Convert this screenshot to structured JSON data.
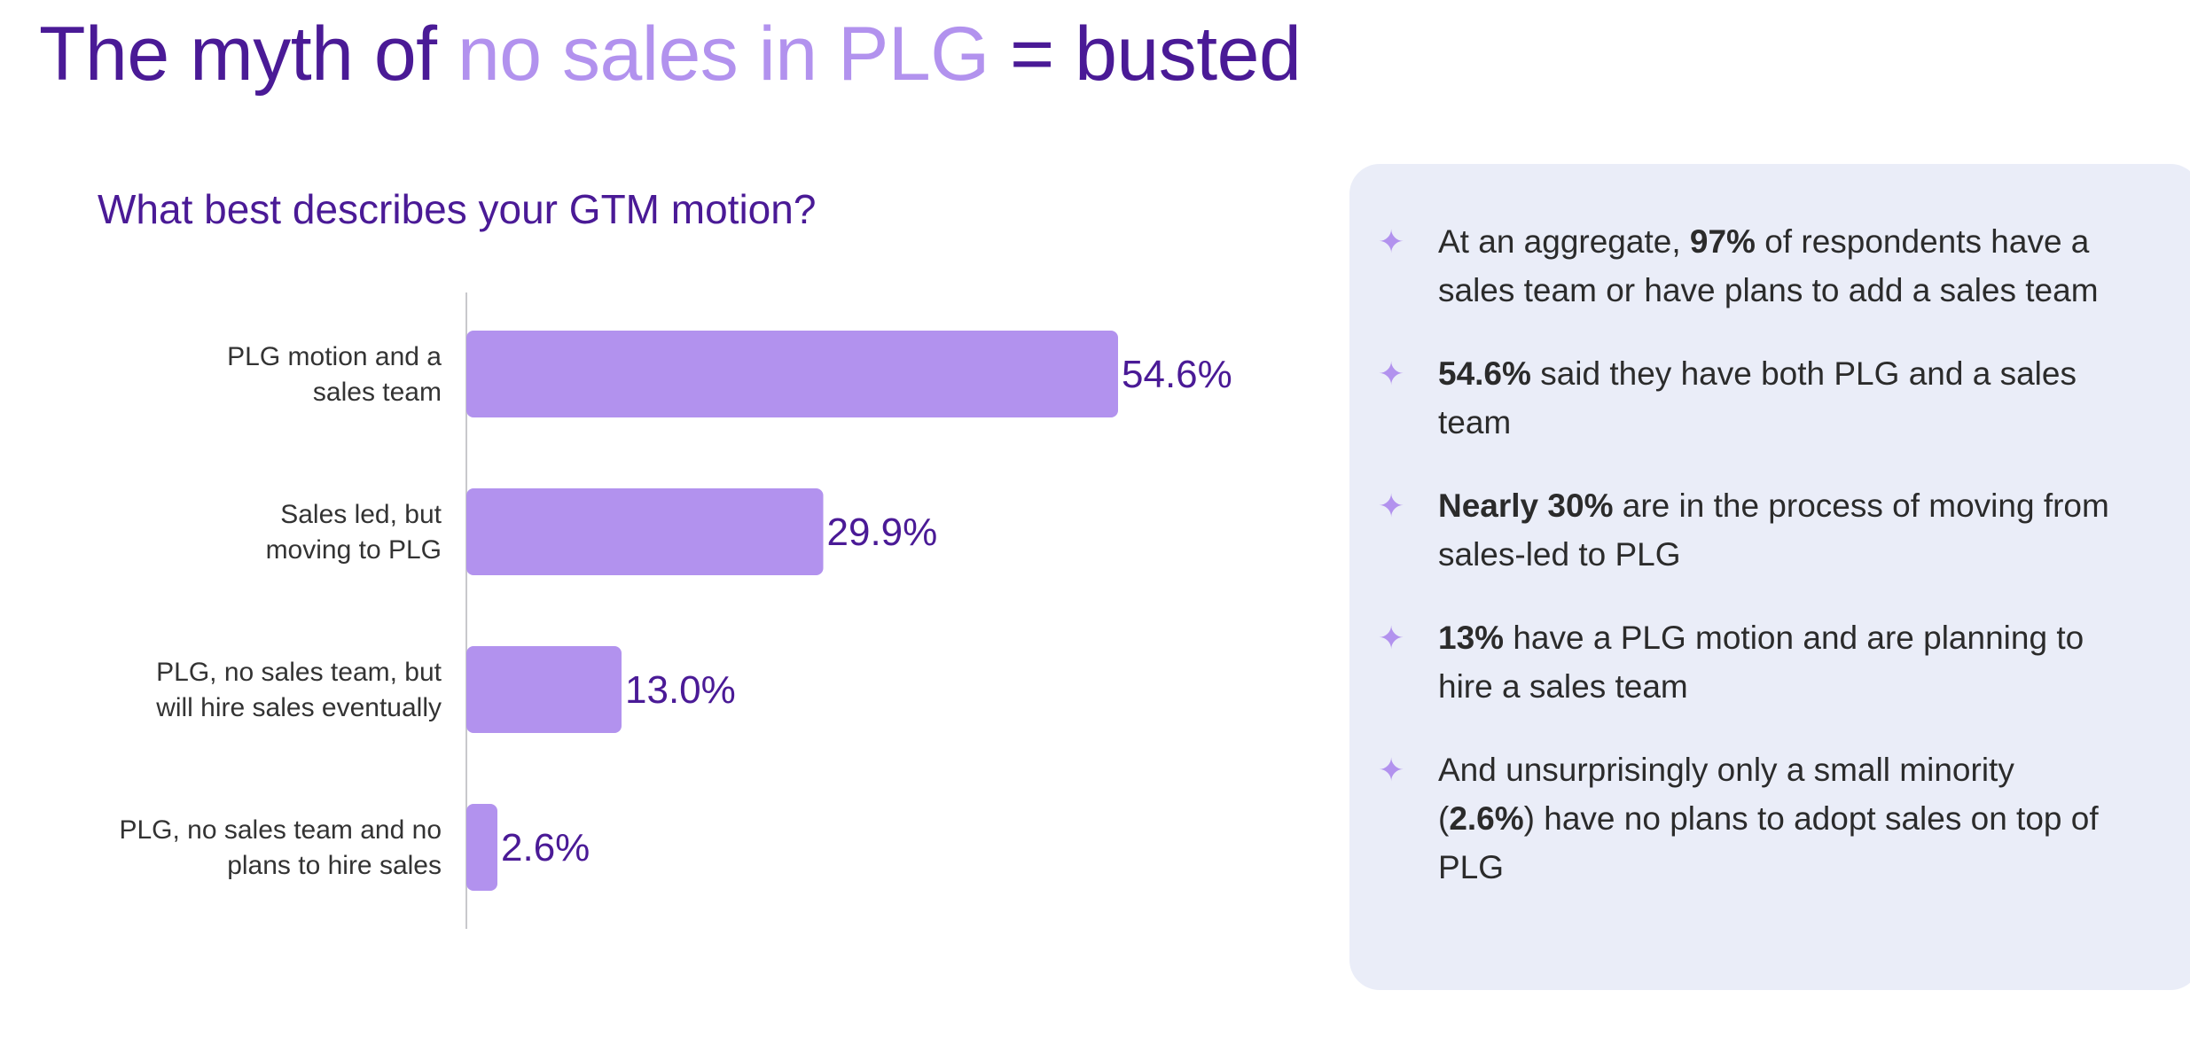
{
  "title": {
    "part1": "The myth of ",
    "highlight": "no sales in PLG",
    "part2": " = busted"
  },
  "colors": {
    "accent": "#4a1a96",
    "highlight": "#b292ee",
    "bar": "#b292ee",
    "panel_bg": "#eaedf8",
    "text": "#2b2b2b"
  },
  "chart_data": {
    "type": "bar",
    "orientation": "horizontal",
    "title": "What best describes your GTM motion?",
    "categories": [
      [
        "PLG motion and a",
        "sales team"
      ],
      [
        "Sales led, but",
        "moving to PLG"
      ],
      [
        "PLG, no sales team, but",
        "will hire sales eventually"
      ],
      [
        "PLG, no sales team and no",
        "plans to hire sales"
      ]
    ],
    "values": [
      54.6,
      29.9,
      13.0,
      2.6
    ],
    "value_labels": [
      "54.6%",
      "29.9%",
      "13.0%",
      "2.6%"
    ],
    "xlim": [
      0,
      60
    ],
    "xlabel": "",
    "ylabel": ""
  },
  "panel": {
    "bullets": [
      {
        "icon": "sparkle-icon",
        "pre": "At an aggregate, ",
        "bold": "97%",
        "post": " of respondents have a sales team or have plans to add a sales team"
      },
      {
        "icon": "sparkle-icon",
        "pre": "",
        "bold": "54.6%",
        "post": " said they have both PLG and a sales team"
      },
      {
        "icon": "sparkle-icon",
        "pre": "",
        "bold": "Nearly 30%",
        "post": " are in the process of moving from sales-led to PLG"
      },
      {
        "icon": "sparkle-icon",
        "pre": "",
        "bold": "13%",
        "post": " have a PLG motion and are planning to hire a sales team"
      },
      {
        "icon": "sparkle-icon",
        "pre": "And unsurprisingly only a small minority (",
        "bold": "2.6%",
        "post": ") have no plans to adopt sales on top of PLG"
      }
    ]
  }
}
